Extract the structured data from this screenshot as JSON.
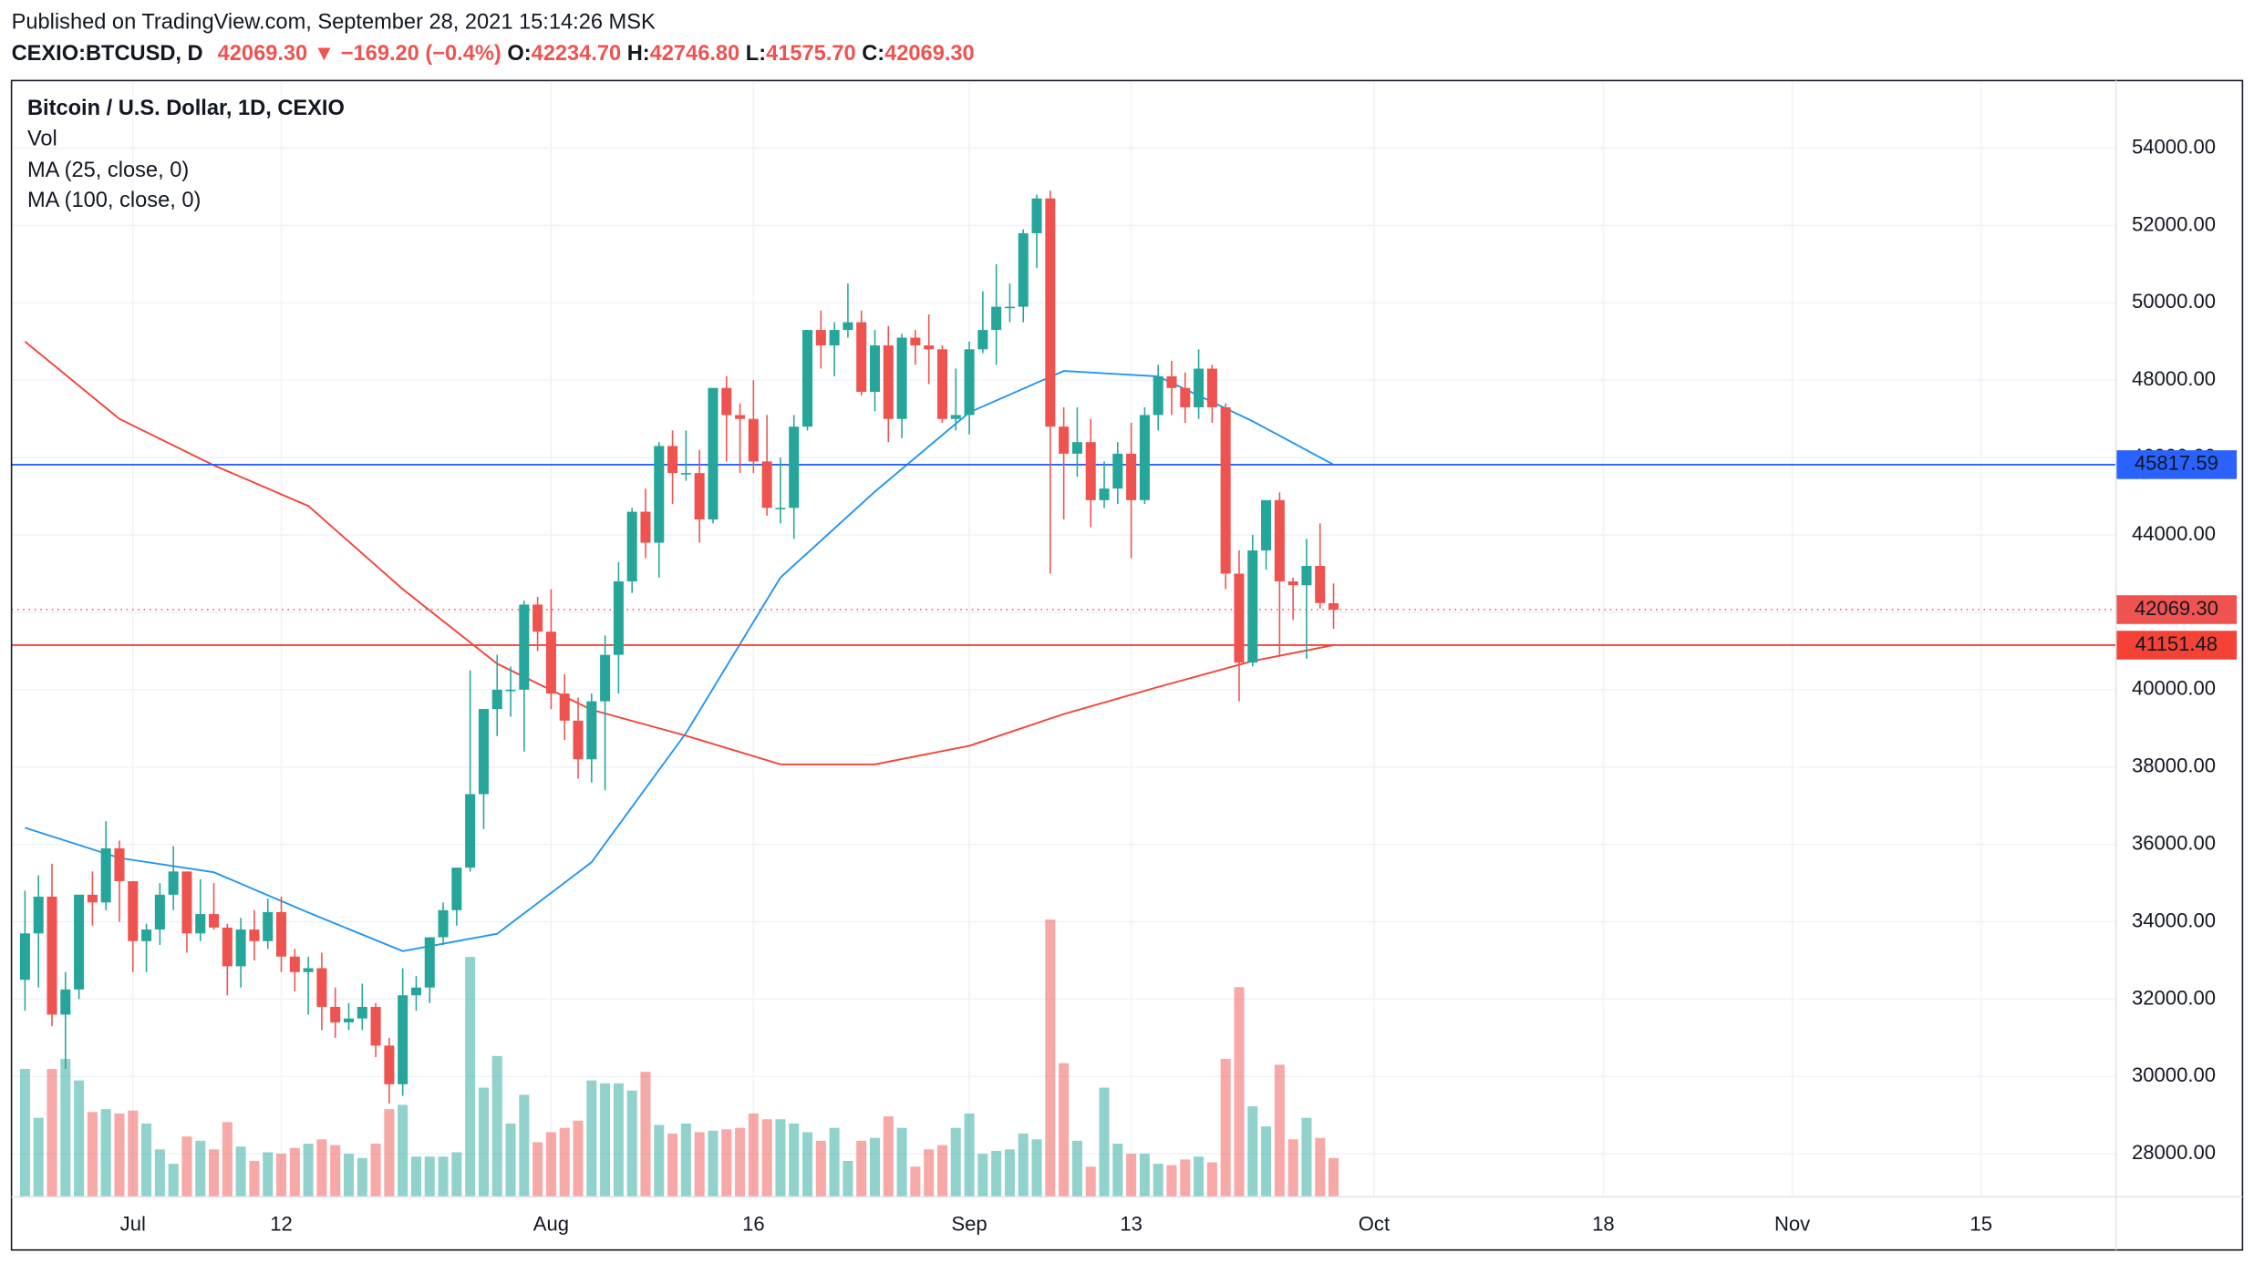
{
  "header": {
    "published": "Published on TradingView.com, September 28, 2021 15:14:26 MSK",
    "symbol": "CEXIO:BTCUSD, D",
    "last": "42069.30",
    "arrow": "▼",
    "change": "−169.20 (−0.4%)",
    "o_label": "O:",
    "o": "42234.70",
    "h_label": "H:",
    "h": "42746.80",
    "l_label": "L:",
    "l": "41575.70",
    "c_label": "C:",
    "c": "42069.30"
  },
  "chart_data": {
    "type": "candlestick",
    "title": "Bitcoin / U.S. Dollar, 1D, CEXIO",
    "volume_label": "Vol",
    "up_color": "#26a69a",
    "down_color": "#ef5350",
    "x": [
      "2021-06-23",
      "2021-06-24",
      "2021-06-25",
      "2021-06-26",
      "2021-06-27",
      "2021-06-28",
      "2021-06-29",
      "2021-06-30",
      "2021-07-01",
      "2021-07-02",
      "2021-07-03",
      "2021-07-04",
      "2021-07-05",
      "2021-07-06",
      "2021-07-07",
      "2021-07-08",
      "2021-07-09",
      "2021-07-10",
      "2021-07-11",
      "2021-07-12",
      "2021-07-13",
      "2021-07-14",
      "2021-07-15",
      "2021-07-16",
      "2021-07-17",
      "2021-07-18",
      "2021-07-19",
      "2021-07-20",
      "2021-07-21",
      "2021-07-22",
      "2021-07-23",
      "2021-07-24",
      "2021-07-25",
      "2021-07-26",
      "2021-07-27",
      "2021-07-28",
      "2021-07-29",
      "2021-07-30",
      "2021-07-31",
      "2021-08-01",
      "2021-08-02",
      "2021-08-03",
      "2021-08-04",
      "2021-08-05",
      "2021-08-06",
      "2021-08-07",
      "2021-08-08",
      "2021-08-09",
      "2021-08-10",
      "2021-08-11",
      "2021-08-12",
      "2021-08-13",
      "2021-08-14",
      "2021-08-15",
      "2021-08-16",
      "2021-08-17",
      "2021-08-18",
      "2021-08-19",
      "2021-08-20",
      "2021-08-21",
      "2021-08-22",
      "2021-08-23",
      "2021-08-24",
      "2021-08-25",
      "2021-08-26",
      "2021-08-27",
      "2021-08-28",
      "2021-08-29",
      "2021-08-30",
      "2021-08-31",
      "2021-09-01",
      "2021-09-02",
      "2021-09-03",
      "2021-09-04",
      "2021-09-05",
      "2021-09-06",
      "2021-09-07",
      "2021-09-08",
      "2021-09-09",
      "2021-09-10",
      "2021-09-11",
      "2021-09-12",
      "2021-09-13",
      "2021-09-14",
      "2021-09-15",
      "2021-09-16",
      "2021-09-17",
      "2021-09-18",
      "2021-09-19",
      "2021-09-20",
      "2021-09-21",
      "2021-09-22",
      "2021-09-23",
      "2021-09-24",
      "2021-09-25",
      "2021-09-26",
      "2021-09-27",
      "2021-09-28"
    ],
    "open": [
      32500,
      33700,
      34650,
      31600,
      32250,
      34700,
      34500,
      35900,
      35050,
      33500,
      33800,
      34700,
      35300,
      33700,
      34200,
      33850,
      32850,
      33800,
      33500,
      34250,
      33100,
      32700,
      32800,
      31800,
      31400,
      31500,
      31800,
      30800,
      29800,
      32100,
      32300,
      33600,
      34300,
      35400,
      37300,
      39500,
      40000,
      40000,
      42200,
      41500,
      39900,
      39200,
      38200,
      39700,
      40900,
      42800,
      44600,
      43800,
      46300,
      45600,
      45600,
      44400,
      47800,
      47100,
      47000,
      45900,
      44700,
      44700,
      46800,
      49300,
      48900,
      49300,
      49500,
      47700,
      48900,
      47000,
      49100,
      48900,
      48800,
      47000,
      47100,
      48800,
      49300,
      49900,
      49900,
      51800,
      52700,
      46800,
      46100,
      46400,
      44900,
      45200,
      46100,
      44900,
      47100,
      48100,
      47800,
      47300,
      48300,
      47300,
      43000,
      40700,
      43600,
      44900,
      42800,
      42700,
      43200,
      42234.7
    ],
    "high": [
      34800,
      35200,
      35500,
      32700,
      34700,
      35300,
      36600,
      36100,
      35050,
      33950,
      35000,
      35950,
      35300,
      35100,
      35000,
      33950,
      34100,
      34300,
      34600,
      34650,
      33300,
      33100,
      33200,
      32300,
      31900,
      32400,
      31900,
      31000,
      32800,
      32600,
      33600,
      34500,
      35400,
      40500,
      39500,
      40900,
      40600,
      42300,
      42400,
      42600,
      40400,
      39800,
      39900,
      41400,
      43300,
      44700,
      45200,
      46400,
      46700,
      46700,
      46200,
      47800,
      48100,
      47400,
      48000,
      47100,
      46000,
      47100,
      49300,
      49800,
      49500,
      50500,
      49800,
      49300,
      49400,
      49200,
      49300,
      49700,
      48900,
      48300,
      49000,
      50300,
      51000,
      50500,
      51900,
      52800,
      52900,
      47300,
      47300,
      47000,
      45900,
      46400,
      46900,
      47300,
      48400,
      48500,
      48200,
      48800,
      48400,
      47400,
      43600,
      44000,
      44900,
      45100,
      42900,
      43900,
      44300,
      42746.8
    ],
    "low": [
      31700,
      32300,
      31300,
      30200,
      32000,
      33900,
      34300,
      34000,
      32700,
      32700,
      33400,
      34300,
      33200,
      33500,
      33800,
      32100,
      32300,
      33000,
      33300,
      32700,
      32200,
      31600,
      31200,
      31000,
      31200,
      31200,
      30500,
      29300,
      29500,
      31700,
      31900,
      33400,
      33900,
      35300,
      36400,
      38800,
      39300,
      38400,
      41000,
      39500,
      38700,
      37700,
      37600,
      37400,
      39900,
      42500,
      43400,
      42900,
      44800,
      45400,
      43800,
      44300,
      45900,
      45600,
      45600,
      44500,
      44300,
      43900,
      46700,
      48300,
      48100,
      49100,
      47600,
      47200,
      46400,
      46500,
      48400,
      47900,
      46900,
      46700,
      46600,
      48700,
      48400,
      49500,
      49500,
      50900,
      43000,
      44400,
      45500,
      44200,
      44700,
      44800,
      43400,
      44800,
      46700,
      47100,
      46900,
      47000,
      46900,
      42600,
      39700,
      40600,
      43100,
      40900,
      41800,
      40800,
      42100,
      41575.7
    ],
    "close": [
      33700,
      34650,
      31600,
      32250,
      34700,
      34500,
      35900,
      35050,
      33500,
      33800,
      34700,
      35300,
      33700,
      34200,
      33850,
      32850,
      33800,
      33500,
      34250,
      33100,
      32700,
      32800,
      31800,
      31400,
      31500,
      31800,
      30800,
      29800,
      32100,
      32300,
      33600,
      34300,
      35400,
      37300,
      39500,
      40000,
      40000,
      42200,
      41500,
      39900,
      39200,
      38200,
      39700,
      40900,
      42800,
      44600,
      43800,
      46300,
      45600,
      45600,
      44400,
      47800,
      47100,
      47000,
      45900,
      44700,
      44700,
      46800,
      49300,
      48900,
      49300,
      49500,
      47700,
      48900,
      47000,
      49100,
      48900,
      48800,
      47000,
      47100,
      48800,
      49300,
      49900,
      49900,
      51800,
      52700,
      46800,
      46100,
      46400,
      44900,
      45200,
      46100,
      44900,
      47100,
      48100,
      47800,
      47300,
      48300,
      47300,
      43000,
      40700,
      43600,
      44900,
      42800,
      42700,
      43200,
      42240,
      42069.3
    ],
    "volume": [
      89,
      55,
      89,
      96,
      81,
      59,
      61,
      58,
      60,
      51,
      33,
      23,
      42,
      39,
      33,
      52,
      35,
      25,
      31,
      30,
      34,
      37,
      40,
      36,
      30,
      27,
      37,
      61,
      64,
      28,
      28,
      28,
      31,
      167,
      76,
      98,
      51,
      71,
      38,
      45,
      48,
      53,
      81,
      79,
      79,
      74,
      87,
      50,
      44,
      51,
      45,
      46,
      47,
      48,
      58,
      54,
      54,
      51,
      45,
      39,
      48,
      25,
      39,
      41,
      56,
      48,
      21,
      33,
      36,
      48,
      58,
      30,
      32,
      33,
      44,
      40,
      193,
      93,
      39,
      21,
      76,
      37,
      30,
      30,
      23,
      22,
      26,
      28,
      24,
      96,
      146,
      63,
      49,
      92,
      40,
      55,
      41,
      27
    ],
    "series": [
      {
        "name": "MA (25, close, 0)",
        "color": "#2196f3",
        "x": [
          "2021-06-23",
          "2021-06-30",
          "2021-07-07",
          "2021-07-14",
          "2021-07-21",
          "2021-07-28",
          "2021-08-04",
          "2021-08-11",
          "2021-08-18",
          "2021-08-25",
          "2021-09-01",
          "2021-09-08",
          "2021-09-15",
          "2021-09-22",
          "2021-09-28"
        ],
        "values": [
          36430,
          35650,
          35280,
          34240,
          33240,
          33690,
          35540,
          38880,
          42900,
          45120,
          47170,
          48240,
          48100,
          46940,
          45817.59
        ]
      },
      {
        "name": "MA (100, close, 0)",
        "color": "#f44336",
        "x": [
          "2021-06-23",
          "2021-06-30",
          "2021-07-07",
          "2021-07-14",
          "2021-07-21",
          "2021-07-28",
          "2021-08-04",
          "2021-08-11",
          "2021-08-18",
          "2021-08-25",
          "2021-09-01",
          "2021-09-08",
          "2021-09-15",
          "2021-09-22",
          "2021-09-28"
        ],
        "values": [
          49000,
          47000,
          45800,
          44750,
          42600,
          40670,
          39480,
          38810,
          38070,
          38070,
          38550,
          39370,
          40070,
          40740,
          41151.48
        ]
      }
    ],
    "hlines": [
      {
        "value": 45817.59,
        "label": "45817.59",
        "color": "#2962ff"
      },
      {
        "value": 41151.48,
        "label": "41151.48",
        "color": "#f44336"
      }
    ],
    "last": {
      "value": 42069.3,
      "label": "42069.30",
      "color": "#ef5350"
    },
    "ylim": [
      26890,
      55710
    ],
    "yticks": [
      {
        "value": 28000,
        "label": "28000.00"
      },
      {
        "value": 30000,
        "label": "30000.00"
      },
      {
        "value": 32000,
        "label": "32000.00"
      },
      {
        "value": 34000,
        "label": "34000.00"
      },
      {
        "value": 36000,
        "label": "36000.00"
      },
      {
        "value": 38000,
        "label": "38000.00"
      },
      {
        "value": 40000,
        "label": "40000.00"
      },
      {
        "value": 42000,
        "label": "42000.00"
      },
      {
        "value": 44000,
        "label": "44000.00"
      },
      {
        "value": 46000,
        "label": "46000.00"
      },
      {
        "value": 48000,
        "label": "48000.00"
      },
      {
        "value": 50000,
        "label": "50000.00"
      },
      {
        "value": 52000,
        "label": "52000.00"
      },
      {
        "value": 54000,
        "label": "54000.00"
      }
    ],
    "xlim": [
      "2021-06-22",
      "2021-11-25"
    ],
    "xticks": [
      {
        "value": "2021-07-01",
        "label": "Jul"
      },
      {
        "value": "2021-07-12",
        "label": "12"
      },
      {
        "value": "2021-08-01",
        "label": "Aug"
      },
      {
        "value": "2021-08-16",
        "label": "16"
      },
      {
        "value": "2021-09-01",
        "label": "Sep"
      },
      {
        "value": "2021-09-13",
        "label": "13"
      },
      {
        "value": "2021-10-01",
        "label": "Oct"
      },
      {
        "value": "2021-10-18",
        "label": "18"
      },
      {
        "value": "2021-11-01",
        "label": "Nov"
      },
      {
        "value": "2021-11-15",
        "label": "15"
      }
    ],
    "grid": true
  }
}
